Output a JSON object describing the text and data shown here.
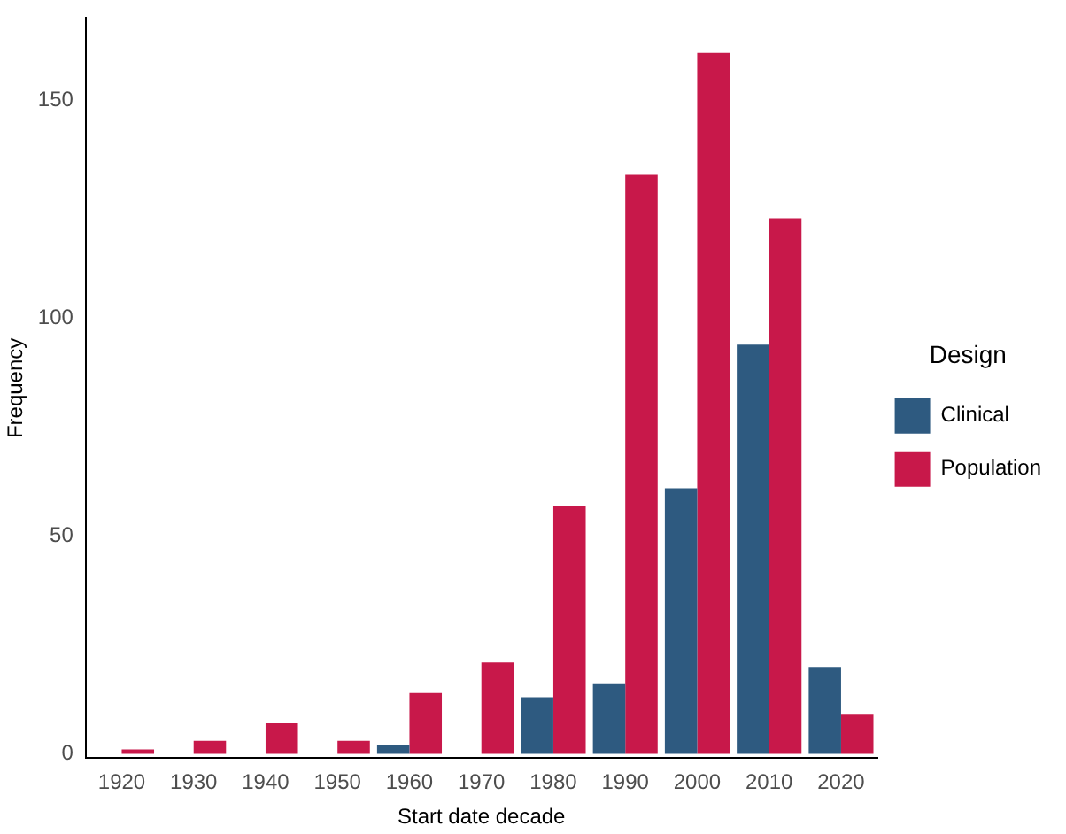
{
  "chart_data": {
    "type": "bar",
    "xlabel": "Start date decade",
    "ylabel": "Frequency",
    "legend_title": "Design",
    "categories": [
      "1920",
      "1930",
      "1940",
      "1950",
      "1960",
      "1970",
      "1980",
      "1990",
      "2000",
      "2010",
      "2020"
    ],
    "series": [
      {
        "name": "Clinical",
        "color": "#2e5a80",
        "values": [
          null,
          null,
          null,
          null,
          2,
          null,
          13,
          16,
          61,
          94,
          20
        ]
      },
      {
        "name": "Population",
        "color": "#c8184a",
        "values": [
          1,
          3,
          7,
          3,
          14,
          21,
          57,
          133,
          161,
          123,
          9
        ]
      }
    ],
    "ylim": [
      -1,
      169
    ],
    "yticks": [
      0,
      50,
      100,
      150
    ],
    "grid": false,
    "legend": "right"
  }
}
